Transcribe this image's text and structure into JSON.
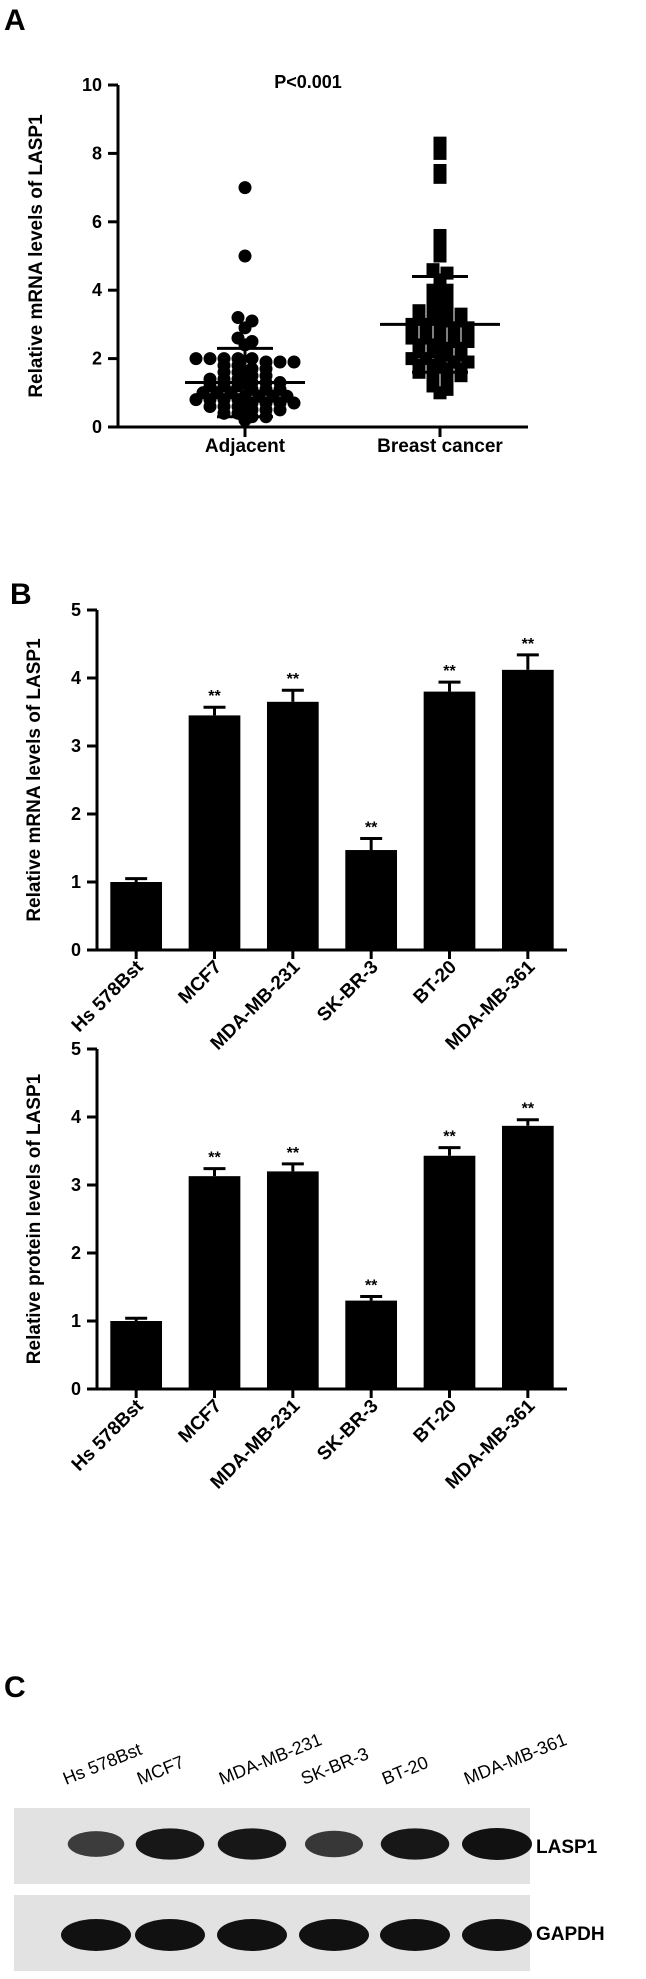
{
  "panels": {
    "a": "A",
    "b": "B",
    "c": "C"
  },
  "chart_data": [
    {
      "type": "scatter",
      "panel": "A",
      "title": "P<0.001",
      "ylabel": "Relative mRNA levels of LASP1",
      "xlabel": "",
      "ylim": [
        0,
        10
      ],
      "yticks": [
        0,
        2,
        4,
        6,
        8,
        10
      ],
      "categories": [
        "Adjacent",
        "Breast cancer"
      ],
      "series": [
        {
          "marker": "circle",
          "mean": 1.3,
          "sd": 1.0,
          "values": [
            7.0,
            5.0,
            3.2,
            3.1,
            2.9,
            2.6,
            2.5,
            2.4,
            2.0,
            2.0,
            2.0,
            2.0,
            2.0,
            1.9,
            1.9,
            1.9,
            1.8,
            1.8,
            1.7,
            1.7,
            1.6,
            1.6,
            1.5,
            1.5,
            1.4,
            1.4,
            1.4,
            1.3,
            1.3,
            1.3,
            1.2,
            1.2,
            1.2,
            1.1,
            1.1,
            1.1,
            1.0,
            1.0,
            1.0,
            0.9,
            0.9,
            0.9,
            0.9,
            0.8,
            0.8,
            0.8,
            0.8,
            0.7,
            0.7,
            0.7,
            0.7,
            0.6,
            0.6,
            0.6,
            0.5,
            0.5,
            0.5,
            0.4,
            0.4,
            0.3,
            0.3,
            0.2
          ]
        },
        {
          "marker": "square",
          "mean": 3.0,
          "sd": 1.4,
          "values": [
            8.3,
            8.2,
            8.0,
            7.5,
            7.3,
            5.6,
            5.3,
            5.1,
            5.0,
            4.6,
            4.5,
            4.3,
            4.2,
            4.0,
            4.0,
            3.8,
            3.7,
            3.6,
            3.5,
            3.4,
            3.4,
            3.3,
            3.3,
            3.2,
            3.2,
            3.1,
            3.1,
            3.0,
            3.0,
            3.0,
            2.9,
            2.9,
            2.8,
            2.8,
            2.8,
            2.7,
            2.7,
            2.6,
            2.6,
            2.5,
            2.5,
            2.5,
            2.4,
            2.4,
            2.3,
            2.3,
            2.2,
            2.2,
            2.1,
            2.1,
            2.0,
            2.0,
            2.0,
            1.9,
            1.9,
            1.8,
            1.8,
            1.7,
            1.7,
            1.6,
            1.6,
            1.5,
            1.5,
            1.4,
            1.3,
            1.2,
            1.1,
            1.0
          ]
        }
      ]
    },
    {
      "type": "bar",
      "panel": "B",
      "ylabel": "Relative mRNA levels of LASP1",
      "ylim": [
        0,
        5
      ],
      "yticks": [
        0,
        1,
        2,
        3,
        4,
        5
      ],
      "categories": [
        "Hs 578Bst",
        "MCF7",
        "MDA-MB-231",
        "SK-BR-3",
        "BT-20",
        "MDA-MB-361"
      ],
      "values": [
        1.0,
        3.45,
        3.65,
        1.47,
        3.8,
        4.12
      ],
      "errors": [
        0.05,
        0.12,
        0.17,
        0.17,
        0.14,
        0.22
      ],
      "significance": [
        "",
        "**",
        "**",
        "**",
        "**",
        "**"
      ]
    },
    {
      "type": "bar",
      "panel": "B",
      "ylabel": "Relative protein levels of LASP1",
      "ylim": [
        0,
        5
      ],
      "yticks": [
        0,
        1,
        2,
        3,
        4,
        5
      ],
      "categories": [
        "Hs 578Bst",
        "MCF7",
        "MDA-MB-231",
        "SK-BR-3",
        "BT-20",
        "MDA-MB-361"
      ],
      "values": [
        1.0,
        3.13,
        3.2,
        1.3,
        3.43,
        3.87
      ],
      "errors": [
        0.04,
        0.11,
        0.11,
        0.06,
        0.12,
        0.09
      ],
      "significance": [
        "",
        "**",
        "**",
        "**",
        "**",
        "**"
      ]
    }
  ],
  "blot": {
    "lanes": [
      "Hs 578Bst",
      "MCF7",
      "MDA-MB-231",
      "SK-BR-3",
      "BT-20",
      "MDA-MB-361"
    ],
    "rows": [
      {
        "label": "LASP1",
        "intensities": [
          0.55,
          0.95,
          0.95,
          0.6,
          0.95,
          1.0
        ]
      },
      {
        "label": "GAPDH",
        "intensities": [
          1.0,
          1.0,
          1.0,
          1.0,
          1.0,
          1.0
        ]
      }
    ]
  }
}
